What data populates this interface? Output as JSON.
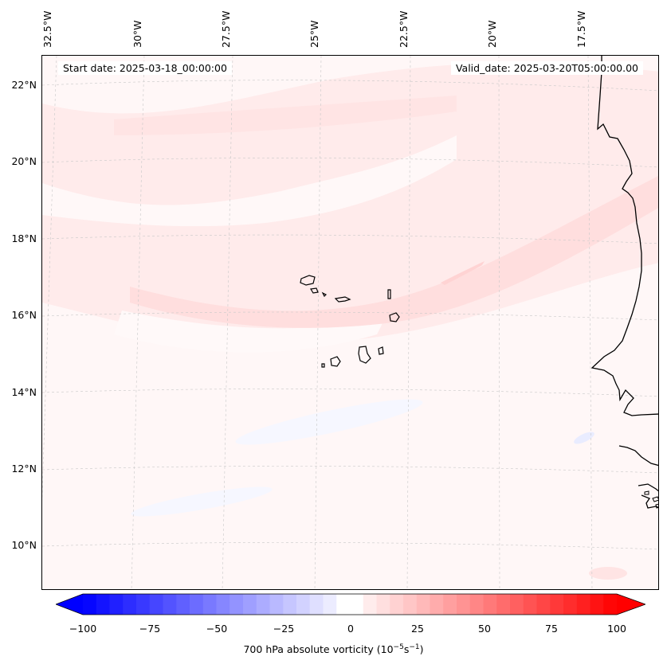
{
  "map": {
    "start_date": "Start date: 2025-03-18_00:00:00",
    "valid_date": "Valid_date: 2025-03-20T05:00:00.00",
    "lat_labels": [
      "22°N",
      "20°N",
      "18°N",
      "16°N",
      "14°N",
      "12°N",
      "10°N"
    ],
    "lon_labels": [
      "32.5°W",
      "30°W",
      "27.5°W",
      "25°W",
      "22.5°W",
      "20°W",
      "17.5°W"
    ],
    "colors": {
      "positive": "#ff0000",
      "negative": "#0000ff",
      "background": "#fff7f7",
      "coast": "#000000"
    }
  },
  "colorbar": {
    "ticks": [
      "−100",
      "−75",
      "−50",
      "−25",
      "0",
      "25",
      "50",
      "75",
      "100"
    ],
    "label": "700 hPa absolute vorticity (10",
    "label_exp1": "−5",
    "label_mid": "s",
    "label_exp2": "−1",
    "label_end": ")",
    "min": -100,
    "max": 100,
    "step": 5
  }
}
